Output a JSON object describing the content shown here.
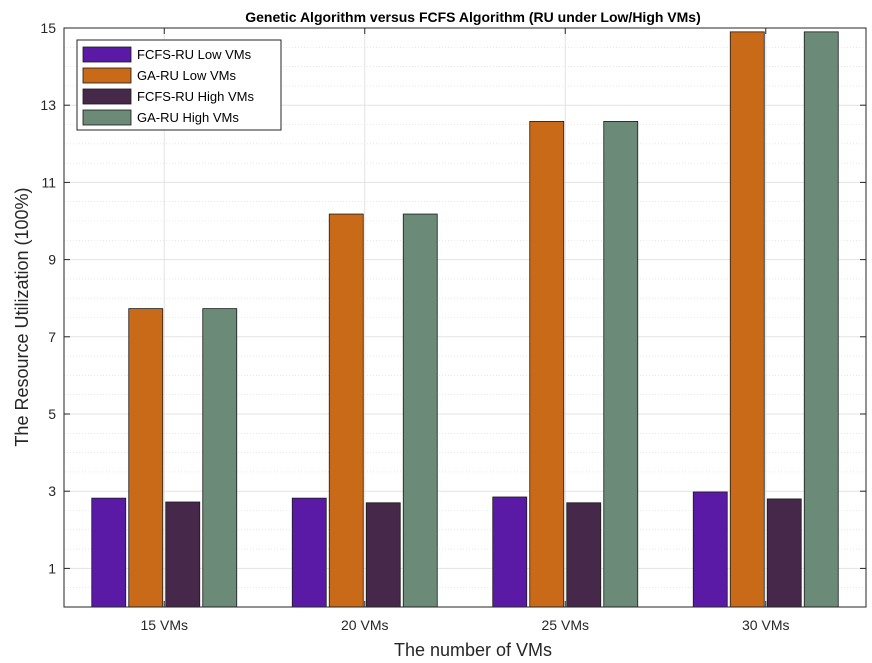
{
  "chart_data": {
    "type": "bar",
    "title": "Genetic Algorithm versus FCFS Algorithm (RU under Low/High VMs)",
    "xlabel": "The number of VMs",
    "ylabel": "The Resource Utilization (100%)",
    "categories": [
      "15 VMs",
      "20 VMs",
      "25 VMs",
      "30 VMs"
    ],
    "ylim": [
      0,
      15
    ],
    "yticks": [
      1,
      3,
      5,
      7,
      9,
      11,
      13,
      15
    ],
    "grid": true,
    "minor_grid": true,
    "legend_position": "top-left",
    "series": [
      {
        "name": "FCFS-RU Low VMs",
        "color": "#5a1aa6",
        "values": [
          2.82,
          2.82,
          2.85,
          2.98
        ]
      },
      {
        "name": "GA-RU Low VMs",
        "color": "#c96a19",
        "values": [
          7.73,
          10.18,
          12.58,
          14.9
        ]
      },
      {
        "name": "FCFS-RU High VMs",
        "color": "#45284a",
        "values": [
          2.72,
          2.7,
          2.7,
          2.8
        ]
      },
      {
        "name": "GA-RU High VMs",
        "color": "#6b8a78",
        "values": [
          7.73,
          10.18,
          12.58,
          14.9
        ]
      }
    ]
  }
}
